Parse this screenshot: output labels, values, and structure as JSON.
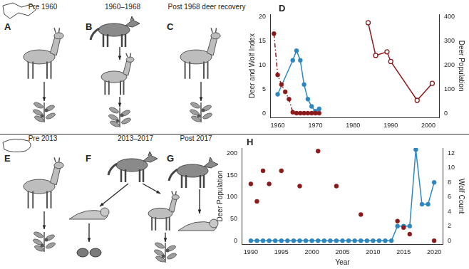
{
  "panels": [
    {
      "label": "A",
      "title": "Pre 1960"
    },
    {
      "label": "B",
      "title": "1960–1968"
    },
    {
      "label": "C",
      "title": "Post 1968 deer recovery"
    },
    {
      "label": "E",
      "title": "Pre 2013"
    },
    {
      "label": "F",
      "title": "2013–2017"
    },
    {
      "label": "G",
      "title": "Post 2017"
    }
  ],
  "chart_data": [
    {
      "type": "line",
      "title": "D",
      "y_label": "Deer and Wolf Index",
      "y2_label": "Deer Population",
      "xlim": [
        1958,
        2003
      ],
      "xticks": [
        1960,
        1970,
        1980,
        1990,
        2000
      ],
      "ylim": [
        -0.8,
        20.5
      ],
      "yticks": [
        0,
        5,
        10,
        15,
        20
      ],
      "y2lim": [
        -16,
        410
      ],
      "y2ticks": [
        0,
        100,
        200,
        300,
        400
      ],
      "grid": false,
      "series": [
        {
          "color": "#8b1a1a",
          "marker": "circle",
          "line_style": "dashdot",
          "axis": "y",
          "x": [
            1959,
            1960,
            1961,
            1962,
            1963,
            1964,
            1965,
            1966,
            1967,
            1968,
            1969,
            1970,
            1971
          ],
          "values": [
            16.5,
            8,
            6,
            4.5,
            3,
            0.3,
            0.1,
            0.1,
            0.1,
            0.1,
            0.1,
            0.1,
            0.1
          ]
        },
        {
          "color": "#2e86c1",
          "marker": "circle",
          "line_style": "solid",
          "axis": "y",
          "x": [
            1960,
            1964,
            1965,
            1966,
            1967,
            1968,
            1969,
            1970,
            1971
          ],
          "values": [
            4,
            11,
            13,
            11,
            6,
            3,
            1.5,
            0.5,
            1
          ]
        },
        {
          "color": "#8b1a1a",
          "marker": "open_circle",
          "line_style": "solid",
          "axis": "y2",
          "x": [
            1984,
            1986,
            1989,
            1990,
            1997,
            2001
          ],
          "values": [
            375,
            240,
            255,
            215,
            55,
            125
          ]
        }
      ]
    },
    {
      "type": "line",
      "title": "H",
      "x_label": "Year",
      "y_label": "Deer Population",
      "y2_label": "Wolf Count",
      "xlim": [
        1988.5,
        2021.5
      ],
      "xticks": [
        1990,
        1995,
        2000,
        2005,
        2010,
        2015,
        2020
      ],
      "ylim": [
        -8,
        212
      ],
      "yticks": [
        0,
        50,
        100,
        150,
        200
      ],
      "y2lim": [
        -0.48,
        12.72
      ],
      "y2ticks": [
        0,
        2,
        4,
        6,
        8,
        10,
        12
      ],
      "grid": false,
      "series": [
        {
          "color": "#8b1a1a",
          "marker": "circle",
          "line_style": "none",
          "axis": "y",
          "x": [
            1990,
            1991,
            1992,
            1993,
            1995,
            1998,
            2001,
            2004,
            2008,
            2014,
            2015,
            2016,
            2020
          ],
          "values": [
            130,
            90,
            160,
            130,
            160,
            125,
            205,
            125,
            60,
            45,
            30,
            15,
            0
          ]
        },
        {
          "color": "#2e86c1",
          "marker": "circle",
          "line_style": "solid",
          "axis": "y2",
          "x": [
            1990,
            1991,
            1992,
            1993,
            1994,
            1995,
            1996,
            1997,
            1998,
            1999,
            2000,
            2001,
            2002,
            2003,
            2004,
            2005,
            2006,
            2007,
            2008,
            2009,
            2010,
            2011,
            2012,
            2013,
            2014,
            2015,
            2016,
            2017,
            2018,
            2019,
            2020
          ],
          "values": [
            0,
            0,
            0,
            0,
            0,
            0,
            0,
            0,
            0,
            0,
            0,
            0,
            0,
            0,
            0,
            0,
            0,
            0,
            0,
            0,
            0,
            0,
            0,
            0,
            2,
            2,
            2,
            12.5,
            5,
            5,
            8
          ]
        }
      ]
    }
  ]
}
